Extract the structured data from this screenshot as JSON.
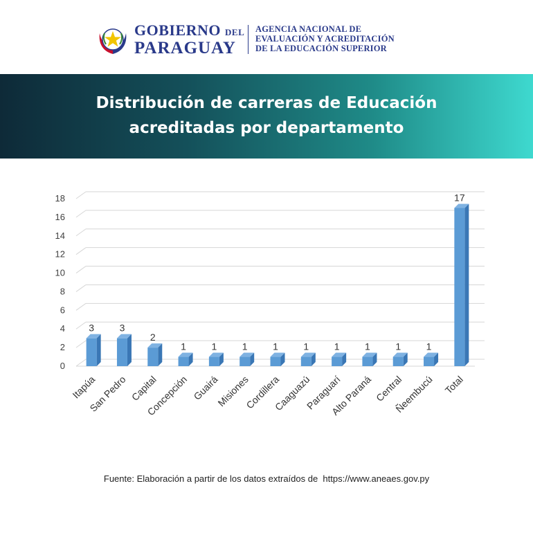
{
  "header": {
    "gov_line1": "GOBIERNO",
    "gov_del": "DEL",
    "gov_line2": "PARAGUAY",
    "agency_line1": "AGENCIA NACIONAL DE",
    "agency_line2": "EVALUACIÓN Y ACREDITACIÓN",
    "agency_line3": "DE LA EDUCACIÓN SUPERIOR"
  },
  "banner": {
    "title_line1": "Distribución de carreras de Educación",
    "title_line2": "acreditadas por departamento"
  },
  "chart_data": {
    "type": "bar",
    "categories": [
      "Itapúa",
      "San Pedro",
      "Capital",
      "Concepción",
      "Guairá",
      "Misiones",
      "Cordillera",
      "Caaguazú",
      "Paraguarí",
      "Alto Paraná",
      "Central",
      "Ñeembucú",
      "Total"
    ],
    "values": [
      3,
      3,
      2,
      1,
      1,
      1,
      1,
      1,
      1,
      1,
      1,
      1,
      17
    ],
    "ylim": [
      0,
      18
    ],
    "yticks": [
      0,
      2,
      4,
      6,
      8,
      10,
      12,
      14,
      16,
      18
    ],
    "title": "",
    "xlabel": "",
    "ylabel": "",
    "grid": true,
    "bar_color": "#5b9bd5"
  },
  "footer": {
    "source": "Fuente: Elaboración a partir de los datos extraídos de  https://www.aneaes.gov.py"
  }
}
